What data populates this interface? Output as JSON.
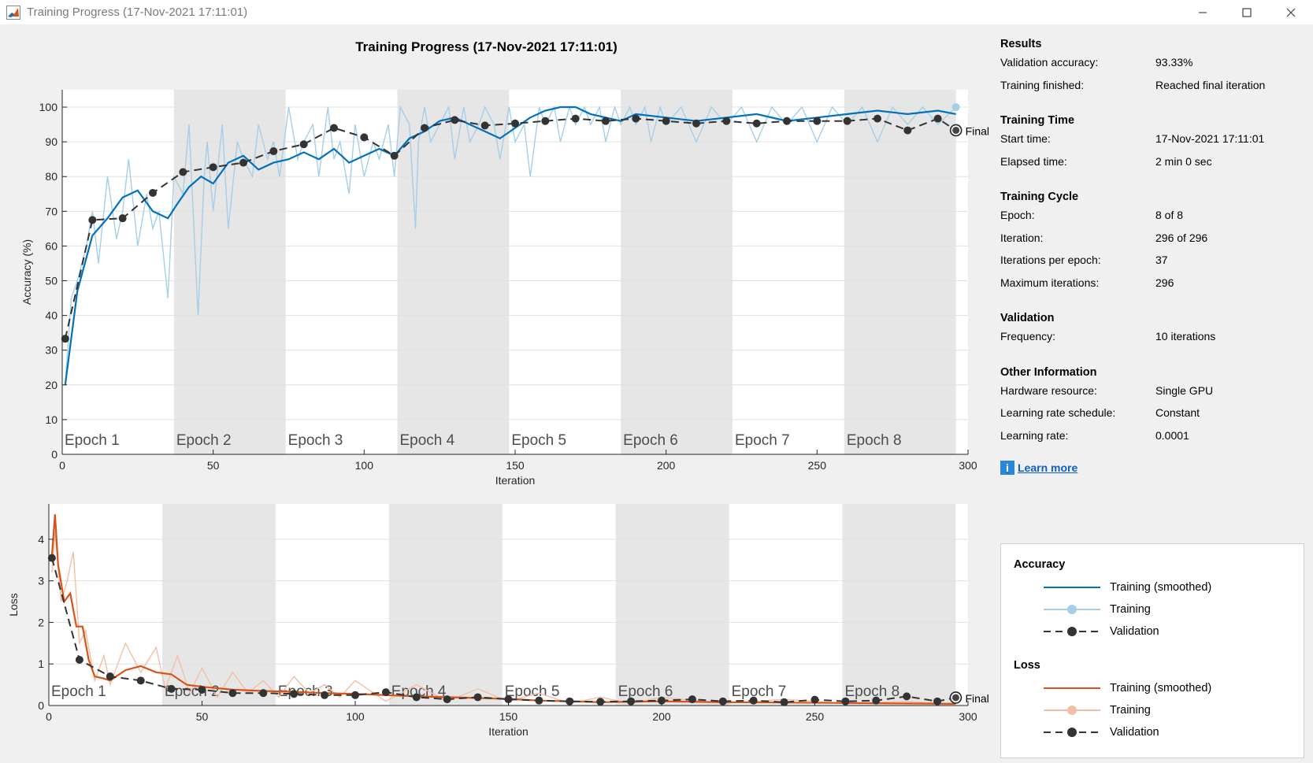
{
  "window": {
    "title": "Training Progress (17-Nov-2021 17:11:01)"
  },
  "plot_title": "Training Progress (17-Nov-2021 17:11:01)",
  "results": {
    "title": "Results",
    "rows": [
      {
        "label": "Validation accuracy:",
        "value": "93.33%"
      },
      {
        "label": "Training finished:",
        "value": "Reached final iteration"
      }
    ]
  },
  "training_time": {
    "title": "Training Time",
    "rows": [
      {
        "label": "Start time:",
        "value": "17-Nov-2021 17:11:01"
      },
      {
        "label": "Elapsed time:",
        "value": "2 min 0 sec"
      }
    ]
  },
  "training_cycle": {
    "title": "Training Cycle",
    "rows": [
      {
        "label": "Epoch:",
        "value": "8 of 8"
      },
      {
        "label": "Iteration:",
        "value": "296 of 296"
      },
      {
        "label": "Iterations per epoch:",
        "value": "37"
      },
      {
        "label": "Maximum iterations:",
        "value": "296"
      }
    ]
  },
  "validation": {
    "title": "Validation",
    "rows": [
      {
        "label": "Frequency:",
        "value": "10 iterations"
      }
    ]
  },
  "other_info": {
    "title": "Other Information",
    "rows": [
      {
        "label": "Hardware resource:",
        "value": "Single GPU"
      },
      {
        "label": "Learning rate schedule:",
        "value": "Constant"
      },
      {
        "label": "Learning rate:",
        "value": "0.0001"
      }
    ]
  },
  "learn_more": "Learn more",
  "legend": {
    "accuracy_title": "Accuracy",
    "loss_title": "Loss",
    "items": [
      "Training (smoothed)",
      "Training",
      "Validation"
    ]
  },
  "colors": {
    "accuracy": "#0072bd",
    "accuracy_light": "#a6cee8",
    "loss": "#d95319",
    "loss_light": "#f2bfa6",
    "validation": "#333333",
    "epoch_shade": "#e6e6e6"
  },
  "chart_data": [
    {
      "type": "line",
      "id": "accuracy",
      "ylabel": "Accuracy (%)",
      "xlabel": "Iteration",
      "xlim": [
        0,
        300
      ],
      "ylim": [
        0,
        105
      ],
      "xticks": [
        0,
        50,
        100,
        150,
        200,
        250,
        300
      ],
      "yticks": [
        0,
        10,
        20,
        30,
        40,
        50,
        60,
        70,
        80,
        90,
        100
      ],
      "epochs": [
        "Epoch 1",
        "Epoch 2",
        "Epoch 3",
        "Epoch 4",
        "Epoch 5",
        "Epoch 6",
        "Epoch 7",
        "Epoch 8"
      ],
      "iterations_per_epoch": 37,
      "final_label": "Final",
      "series": [
        {
          "name": "Training (smoothed)",
          "x": [
            1,
            5,
            10,
            15,
            20,
            25,
            30,
            35,
            38,
            42,
            46,
            50,
            55,
            60,
            65,
            70,
            75,
            80,
            85,
            90,
            95,
            100,
            105,
            110,
            115,
            120,
            125,
            130,
            135,
            140,
            145,
            150,
            155,
            160,
            165,
            170,
            175,
            180,
            185,
            190,
            200,
            210,
            220,
            230,
            240,
            250,
            260,
            270,
            280,
            290,
            296
          ],
          "y": [
            20,
            47,
            63,
            68,
            74,
            76,
            70,
            68,
            72,
            77,
            80,
            78,
            84,
            86,
            82,
            84,
            85,
            87,
            85,
            88,
            84,
            86,
            88,
            86,
            91,
            93,
            96,
            97,
            95,
            93,
            91,
            94,
            97,
            99,
            100,
            100,
            98,
            97,
            96,
            98,
            97,
            96,
            97,
            98,
            96,
            97,
            98,
            99,
            98,
            99,
            98
          ]
        },
        {
          "name": "Training",
          "x": [
            1,
            3,
            5,
            8,
            10,
            12,
            15,
            18,
            20,
            22,
            25,
            28,
            30,
            32,
            35,
            37,
            40,
            42,
            45,
            47,
            48,
            50,
            53,
            55,
            58,
            60,
            63,
            65,
            68,
            70,
            72,
            75,
            78,
            80,
            83,
            85,
            88,
            90,
            92,
            95,
            97,
            100,
            103,
            105,
            108,
            110,
            112,
            115,
            117,
            118,
            120,
            122,
            125,
            128,
            130,
            133,
            135,
            138,
            140,
            143,
            145,
            148,
            150,
            153,
            155,
            158,
            160,
            163,
            165,
            168,
            170,
            173,
            175,
            178,
            180,
            183,
            185,
            188,
            190,
            193,
            195,
            198,
            200,
            205,
            210,
            215,
            220,
            225,
            230,
            235,
            240,
            245,
            250,
            255,
            260,
            265,
            270,
            275,
            280,
            285,
            290,
            296
          ],
          "y": [
            20,
            45,
            50,
            60,
            70,
            55,
            80,
            62,
            70,
            85,
            60,
            75,
            65,
            70,
            45,
            80,
            75,
            95,
            40,
            80,
            90,
            70,
            95,
            65,
            90,
            85,
            80,
            95,
            85,
            90,
            80,
            100,
            85,
            90,
            95,
            80,
            100,
            85,
            90,
            75,
            95,
            80,
            90,
            85,
            95,
            80,
            100,
            95,
            65,
            90,
            100,
            90,
            95,
            100,
            85,
            100,
            90,
            95,
            100,
            95,
            85,
            100,
            90,
            95,
            80,
            100,
            95,
            100,
            90,
            100,
            95,
            100,
            95,
            100,
            90,
            100,
            95,
            100,
            95,
            100,
            90,
            100,
            95,
            100,
            90,
            100,
            95,
            100,
            90,
            100,
            95,
            100,
            90,
            100,
            95,
            100,
            90,
            100,
            95,
            100,
            95,
            100
          ]
        },
        {
          "name": "Validation",
          "x": [
            1,
            10,
            20,
            30,
            40,
            50,
            60,
            70,
            80,
            90,
            100,
            110,
            120,
            130,
            140,
            150,
            160,
            170,
            180,
            190,
            200,
            210,
            220,
            230,
            240,
            250,
            260,
            270,
            280,
            290,
            296
          ],
          "y": [
            33.3,
            67.5,
            68,
            75.3,
            81.3,
            82.7,
            84,
            87.3,
            89.3,
            94,
            91.3,
            86,
            94,
            96.3,
            94.7,
            95.3,
            96,
            96.7,
            96,
            96.7,
            96,
            95.3,
            96,
            95.3,
            96,
            96,
            96,
            96.7,
            93.3,
            96.7,
            93.33
          ]
        }
      ]
    },
    {
      "type": "line",
      "id": "loss",
      "ylabel": "Loss",
      "xlabel": "Iteration",
      "xlim": [
        0,
        300
      ],
      "ylim": [
        0,
        4.85
      ],
      "xticks": [
        0,
        50,
        100,
        150,
        200,
        250,
        300
      ],
      "yticks": [
        0,
        1,
        2,
        3,
        4
      ],
      "epochs": [
        "Epoch 1",
        "Epoch 2",
        "Epoch 3",
        "Epoch 4",
        "Epoch 5",
        "Epoch 6",
        "Epoch 7",
        "Epoch 8"
      ],
      "iterations_per_epoch": 37,
      "final_label": "Final",
      "series": [
        {
          "name": "Training (smoothed)",
          "x": [
            1,
            2,
            3,
            5,
            7,
            9,
            11,
            13,
            15,
            18,
            20,
            25,
            30,
            35,
            40,
            45,
            50,
            60,
            70,
            80,
            90,
            100,
            110,
            120,
            130,
            140,
            150,
            160,
            170,
            180,
            190,
            200,
            220,
            240,
            260,
            280,
            296
          ],
          "y": [
            3.6,
            4.6,
            3.4,
            2.5,
            2.7,
            1.9,
            1.9,
            1.1,
            0.7,
            0.65,
            0.6,
            0.85,
            0.95,
            0.8,
            0.75,
            0.5,
            0.45,
            0.38,
            0.35,
            0.33,
            0.3,
            0.28,
            0.25,
            0.22,
            0.2,
            0.18,
            0.16,
            0.12,
            0.1,
            0.08,
            0.09,
            0.1,
            0.08,
            0.07,
            0.06,
            0.05,
            0.04
          ]
        },
        {
          "name": "Training",
          "x": [
            1,
            2,
            4,
            6,
            8,
            10,
            12,
            15,
            18,
            20,
            25,
            30,
            35,
            38,
            42,
            46,
            50,
            55,
            60,
            65,
            70,
            75,
            80,
            85,
            90,
            95,
            100,
            110,
            120,
            130,
            140,
            150,
            160,
            170,
            180,
            190,
            200,
            220,
            240,
            260,
            280,
            296
          ],
          "y": [
            3.2,
            4.2,
            2.5,
            3.0,
            3.7,
            1.5,
            1.8,
            0.6,
            1.2,
            0.5,
            1.5,
            0.8,
            1.4,
            0.4,
            1.2,
            0.3,
            0.9,
            0.2,
            0.8,
            0.3,
            0.6,
            0.2,
            0.7,
            0.3,
            0.5,
            0.2,
            0.6,
            0.1,
            0.5,
            0.1,
            0.4,
            0.1,
            0.3,
            0.05,
            0.2,
            0.05,
            0.2,
            0.05,
            0.15,
            0.05,
            0.1,
            0.03
          ]
        },
        {
          "name": "Validation",
          "x": [
            1,
            10,
            20,
            30,
            40,
            50,
            60,
            70,
            80,
            90,
            100,
            110,
            120,
            130,
            140,
            150,
            160,
            170,
            180,
            190,
            200,
            210,
            220,
            230,
            240,
            250,
            260,
            270,
            280,
            290,
            296
          ],
          "y": [
            3.55,
            1.1,
            0.7,
            0.6,
            0.4,
            0.38,
            0.3,
            0.3,
            0.28,
            0.25,
            0.25,
            0.32,
            0.2,
            0.15,
            0.2,
            0.15,
            0.12,
            0.1,
            0.09,
            0.1,
            0.12,
            0.15,
            0.1,
            0.12,
            0.08,
            0.14,
            0.1,
            0.12,
            0.22,
            0.1,
            0.19
          ]
        }
      ]
    }
  ]
}
